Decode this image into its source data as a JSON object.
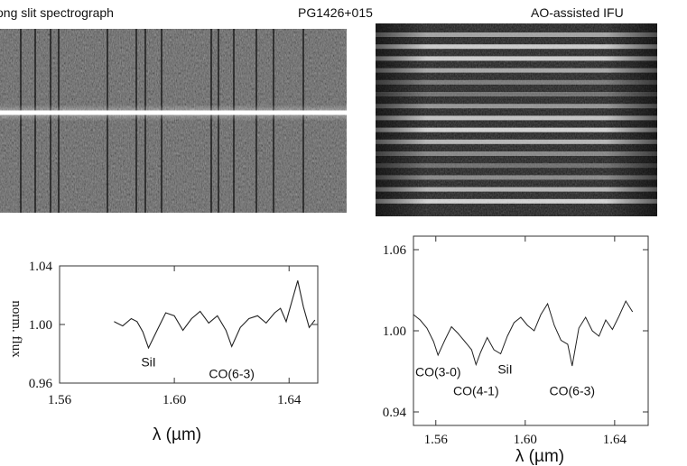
{
  "header": {
    "left_title": "ong slit spectrograph",
    "center_title": "PG1426+015",
    "right_title": "AO-assisted IFU"
  },
  "chart_data": [
    {
      "type": "line",
      "panel": "long-slit",
      "xlabel": "λ (µm)",
      "ylabel": "norm. flux",
      "xlim": [
        1.56,
        1.65
      ],
      "ylim": [
        0.96,
        1.04
      ],
      "xticks": [
        "1.56",
        "1.60",
        "1.64"
      ],
      "yticks": [
        "1.04",
        "1.00",
        "0.96"
      ],
      "grid": false,
      "annotations": [
        {
          "text": "SiI",
          "x": 1.591,
          "y": 0.974
        },
        {
          "text": "CO(6-3)",
          "x": 1.62,
          "y": 0.966
        }
      ],
      "series": [
        {
          "x": [
            1.579,
            1.582,
            1.585,
            1.587,
            1.589,
            1.591,
            1.594,
            1.597,
            1.6,
            1.603,
            1.606,
            1.609,
            1.612,
            1.615,
            1.618,
            1.62,
            1.623,
            1.626,
            1.629,
            1.632,
            1.635,
            1.637,
            1.639,
            1.641,
            1.643,
            1.645,
            1.647,
            1.649
          ],
          "y": [
            1.002,
            0.999,
            1.004,
            1.002,
            0.995,
            0.984,
            0.996,
            1.008,
            1.006,
            0.996,
            1.004,
            1.009,
            1.001,
            1.006,
            0.996,
            0.985,
            0.998,
            1.004,
            1.006,
            1.001,
            1.008,
            1.011,
            1.002,
            1.016,
            1.03,
            1.012,
            0.998,
            1.003
          ]
        }
      ]
    },
    {
      "type": "line",
      "panel": "ao-ifu",
      "xlabel": "λ (µm)",
      "ylabel": "",
      "xlim": [
        1.55,
        1.655
      ],
      "ylim": [
        0.93,
        1.07
      ],
      "xticks": [
        "1.56",
        "1.60",
        "1.64"
      ],
      "yticks": [
        "1.06",
        "1.00",
        "0.94"
      ],
      "grid": false,
      "annotations": [
        {
          "text": "CO(3-0)",
          "x": 1.561,
          "y": 0.969
        },
        {
          "text": "CO(4-1)",
          "x": 1.578,
          "y": 0.955
        },
        {
          "text": "SiI",
          "x": 1.591,
          "y": 0.971
        },
        {
          "text": "CO(6-3)",
          "x": 1.621,
          "y": 0.955
        }
      ],
      "series": [
        {
          "x": [
            1.55,
            1.553,
            1.556,
            1.559,
            1.561,
            1.564,
            1.567,
            1.57,
            1.573,
            1.576,
            1.578,
            1.58,
            1.583,
            1.586,
            1.589,
            1.592,
            1.595,
            1.598,
            1.601,
            1.604,
            1.607,
            1.61,
            1.613,
            1.616,
            1.619,
            1.621,
            1.624,
            1.627,
            1.63,
            1.633,
            1.636,
            1.639,
            1.642,
            1.645,
            1.648
          ],
          "y": [
            1.012,
            1.008,
            1.002,
            0.992,
            0.982,
            0.993,
            1.003,
            0.998,
            0.992,
            0.986,
            0.975,
            0.984,
            0.995,
            0.986,
            0.983,
            0.996,
            1.006,
            1.01,
            1.004,
            1.0,
            1.012,
            1.02,
            1.004,
            0.993,
            0.99,
            0.974,
            1.002,
            1.01,
            1.0,
            0.996,
            1.008,
            1.001,
            1.011,
            1.022,
            1.014
          ]
        }
      ]
    }
  ]
}
